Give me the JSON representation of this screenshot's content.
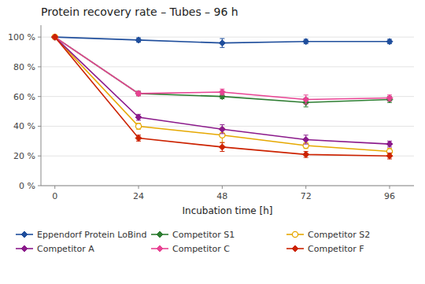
{
  "chart_data": {
    "type": "line",
    "title": "Protein recovery rate – Tubes – 96 h",
    "x_label": "Incubation time [h]",
    "x": [
      0,
      24,
      48,
      72,
      96
    ],
    "series": [
      {
        "name": "Eppendorf Protein LoBind",
        "color": "#1f4e9c",
        "marker": "diamond",
        "values": [
          100,
          98,
          96,
          97,
          97
        ],
        "errors": [
          0,
          1.5,
          3.0,
          1.5,
          1.5
        ]
      },
      {
        "name": "Competitor S1",
        "color": "#2e7d32",
        "marker": "diamond",
        "values": [
          100,
          62,
          60,
          56,
          58
        ],
        "errors": [
          0,
          1.5,
          1.5,
          3.0,
          2.0
        ]
      },
      {
        "name": "Competitor S2",
        "color": "#e6a800",
        "marker": "circle",
        "values": [
          100,
          40,
          34,
          27,
          23
        ],
        "errors": [
          0,
          2.0,
          5.0,
          2.0,
          2.0
        ]
      },
      {
        "name": "Competitor A",
        "color": "#8b1a8b",
        "marker": "diamond",
        "values": [
          100,
          46,
          38,
          31,
          28
        ],
        "errors": [
          0,
          2.0,
          3.0,
          3.0,
          2.0
        ]
      },
      {
        "name": "Competitor C",
        "color": "#e84393",
        "marker": "diamond",
        "values": [
          100,
          62,
          63,
          58,
          59
        ],
        "errors": [
          0,
          1.5,
          2.0,
          3.0,
          2.0
        ]
      },
      {
        "name": "Competitor F",
        "color": "#cc2200",
        "marker": "diamond",
        "values": [
          100,
          32,
          26,
          21,
          20
        ],
        "errors": [
          0,
          2.0,
          3.0,
          2.0,
          2.0
        ]
      }
    ],
    "xlim": [
      -4,
      103
    ],
    "ylim": [
      0,
      108
    ],
    "xticks": [
      0,
      24,
      48,
      72,
      96
    ],
    "yticks": [
      {
        "value": 0,
        "label": "0 %"
      },
      {
        "value": 20,
        "label": "20 %"
      },
      {
        "value": 40,
        "label": "40 %"
      },
      {
        "value": 60,
        "label": "60 %"
      },
      {
        "value": 80,
        "label": "80 %"
      },
      {
        "value": 100,
        "label": "100 %"
      }
    ],
    "grid": true,
    "legend": "bottom"
  }
}
